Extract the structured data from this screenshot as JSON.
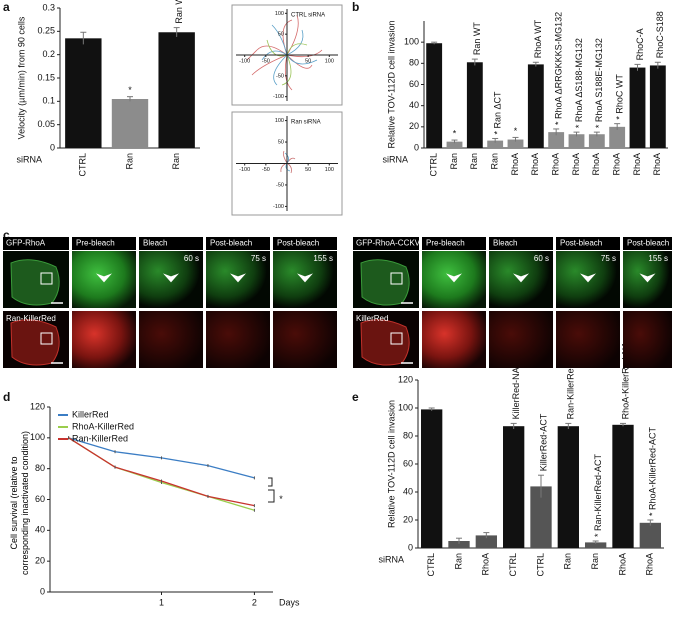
{
  "panels": [
    "a",
    "b",
    "c",
    "d",
    "e"
  ],
  "chart_data": [
    {
      "type": "bar",
      "ylabel": "Velocity (µm/min) from 90 cells",
      "xlabel": "siRNA",
      "categories": [
        "CTRL",
        "Ran",
        "Ran"
      ],
      "values": [
        0.235,
        0.105,
        0.248
      ],
      "errors": [
        0.013,
        0.005,
        0.01
      ],
      "colors": [
        "#111111",
        "#8c8c8c",
        "#111111"
      ],
      "annotations": [
        null,
        "*",
        "Ran WT"
      ],
      "ylim": [
        0,
        0.3
      ],
      "yticks": [
        0,
        0.05,
        0.1,
        0.15,
        0.2,
        0.25,
        0.3
      ]
    },
    {
      "type": "trajectory",
      "title": "CTRL siRNA",
      "xlim": [
        -130,
        130
      ],
      "ylim": [
        -120,
        120
      ],
      "xticks": [
        -100,
        -50,
        50,
        100
      ],
      "yticks": [
        -100,
        -50,
        50,
        100
      ]
    },
    {
      "type": "trajectory",
      "title": "Ran siRNA",
      "xlim": [
        -130,
        130
      ],
      "ylim": [
        -120,
        120
      ],
      "xticks": [
        -100,
        -50,
        50,
        100
      ],
      "yticks": [
        -100,
        -50,
        50,
        100
      ]
    },
    {
      "type": "bar",
      "ylabel": "Relative TOV-112D cell invasion",
      "xlabel": "siRNA",
      "categories": [
        "CTRL",
        "Ran",
        "Ran",
        "Ran",
        "RhoA",
        "RhoA",
        "RhoA",
        "RhoA",
        "RhoA",
        "RhoA",
        "RhoA",
        "RhoA"
      ],
      "values": [
        99,
        6,
        81,
        7,
        8,
        79,
        15,
        13,
        13,
        20,
        76,
        78
      ],
      "errors": [
        1,
        1.5,
        3,
        2,
        2,
        2,
        3,
        2,
        2,
        3,
        3,
        3
      ],
      "colors": [
        "#111111",
        "#8c8c8c",
        "#111111",
        "#8c8c8c",
        "#8c8c8c",
        "#111111",
        "#8c8c8c",
        "#8c8c8c",
        "#8c8c8c",
        "#8c8c8c",
        "#111111",
        "#111111"
      ],
      "annotations": [
        null,
        "*",
        "Ran WT",
        "* Ran ΔCT",
        "*",
        "RhoA WT",
        "* RhoA ΔRRGKKKS-MG132",
        "* RhoA ΔS188-MG132",
        "* RhoA S188E-MG132",
        "* RhoC WT",
        "RhoC-A",
        "RhoC-S188"
      ],
      "ylim": [
        0,
        120
      ],
      "yticks": [
        0,
        20,
        40,
        60,
        80,
        100
      ]
    },
    {
      "type": "line",
      "ylabel": "Cell survival (relative to corresponding inactivated condition)",
      "xlabel": "Days",
      "x": [
        0,
        0.5,
        1,
        1.5,
        2
      ],
      "series": [
        {
          "name": "KillerRed",
          "color": "#3b7dc4",
          "values": [
            100,
            91,
            87,
            82,
            74
          ]
        },
        {
          "name": "RhoA-KillerRed",
          "color": "#9acd4c",
          "values": [
            100,
            81,
            71,
            62,
            53
          ]
        },
        {
          "name": "Ran-KillerRed",
          "color": "#c8332f",
          "values": [
            100,
            81,
            72,
            62,
            56
          ]
        }
      ],
      "annotation": "*",
      "xlim": [
        -0.2,
        2.2
      ],
      "xticks": [
        1,
        2
      ],
      "ylim": [
        0,
        120
      ],
      "yticks": [
        0,
        20,
        40,
        60,
        80,
        100,
        120
      ]
    },
    {
      "type": "bar",
      "ylabel": "Relative TOV-112D cell invasion",
      "xlabel": "siRNA",
      "categories": [
        "CTRL",
        "Ran",
        "RhoA",
        "CTRL",
        "CTRL",
        "Ran",
        "Ran",
        "RhoA",
        "RhoA"
      ],
      "values": [
        99,
        5,
        9,
        87,
        44,
        87,
        4,
        88,
        18
      ],
      "errors": [
        1,
        2,
        2,
        2,
        8,
        2,
        1,
        1,
        2
      ],
      "colors": [
        "#111111",
        "#555555",
        "#555555",
        "#111111",
        "#555555",
        "#111111",
        "#555555",
        "#111111",
        "#555555"
      ],
      "annotations": [
        null,
        null,
        null,
        "KillerRed-NA",
        "KillerRed-ACT",
        "Ran-KillerRed-NA",
        "* Ran-KillerRed-ACT",
        "RhoA-KillerRed-NA",
        "* RhoA-KillerRed-ACT"
      ],
      "ylim": [
        0,
        120
      ],
      "yticks": [
        0,
        20,
        40,
        60,
        80,
        100,
        120
      ]
    }
  ],
  "microscopy": [
    {
      "label_top": "GFP-RhoA",
      "label_bottom": "Ran-KillerRed",
      "headers": [
        "Pre-bleach",
        "Bleach",
        "Post-bleach",
        "Post-bleach"
      ],
      "times": [
        "60 s",
        "75 s",
        "155 s"
      ]
    },
    {
      "label_top": "GFP-RhoA-CCKVL",
      "label_bottom": "KillerRed",
      "headers": [
        "Pre-bleach",
        "Bleach",
        "Post-bleach",
        "Post-bleach"
      ],
      "times": [
        "60 s",
        "75 s",
        "155 s"
      ]
    }
  ]
}
